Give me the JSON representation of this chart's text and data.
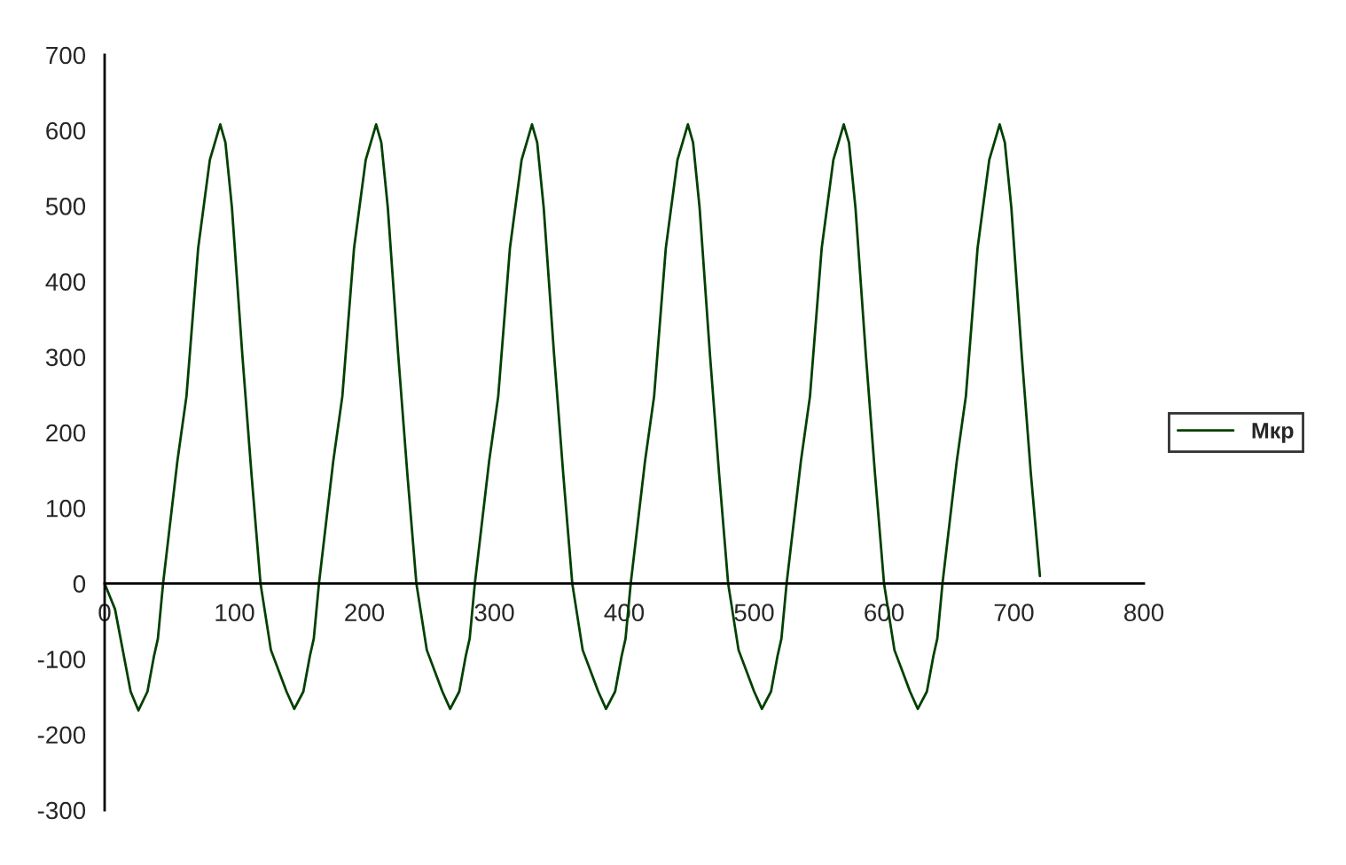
{
  "chart_data": {
    "type": "line",
    "xlim": [
      0,
      800
    ],
    "ylim": [
      -300,
      700
    ],
    "xticks": [
      0,
      100,
      200,
      300,
      400,
      500,
      600,
      700,
      800
    ],
    "yticks": [
      -300,
      -200,
      -100,
      0,
      100,
      200,
      300,
      400,
      500,
      600,
      700
    ],
    "grid": false,
    "legend": "right",
    "marker": "none",
    "line_style": "solid",
    "series": [
      {
        "name": "Мкр",
        "color": "#004000",
        "x": [
          0,
          8,
          20,
          26,
          33,
          38,
          41,
          45,
          56,
          63,
          72,
          81,
          89,
          93,
          98,
          106,
          113,
          120,
          128,
          140,
          146,
          153,
          158,
          161,
          165,
          176,
          183,
          192,
          201,
          209,
          213,
          218,
          226,
          233,
          240,
          248,
          260,
          266,
          273,
          278,
          281,
          285,
          296,
          303,
          312,
          321,
          329,
          333,
          338,
          346,
          353,
          360,
          368,
          380,
          386,
          393,
          398,
          401,
          405,
          416,
          423,
          432,
          441,
          449,
          453,
          458,
          466,
          473,
          480,
          488,
          500,
          506,
          513,
          518,
          521,
          525,
          536,
          543,
          552,
          561,
          569,
          573,
          578,
          586,
          593,
          600,
          608,
          620,
          626,
          633,
          638,
          641,
          645,
          656,
          663,
          672,
          681,
          689,
          693,
          698,
          706,
          713,
          720
        ],
        "values": [
          0,
          -34,
          -143,
          -168,
          -143,
          -96,
          -73,
          0,
          162,
          248,
          444,
          561,
          608,
          584,
          498,
          303,
          146,
          0,
          -88,
          -143,
          -166,
          -143,
          -96,
          -73,
          0,
          162,
          248,
          444,
          561,
          608,
          584,
          498,
          303,
          146,
          0,
          -88,
          -143,
          -166,
          -143,
          -96,
          -73,
          0,
          162,
          248,
          444,
          561,
          608,
          584,
          498,
          303,
          146,
          0,
          -88,
          -143,
          -166,
          -143,
          -96,
          -73,
          0,
          162,
          248,
          444,
          561,
          608,
          584,
          498,
          303,
          146,
          0,
          -88,
          -143,
          -166,
          -143,
          -96,
          -73,
          0,
          162,
          248,
          444,
          561,
          608,
          584,
          498,
          303,
          146,
          0,
          -88,
          -143,
          -166,
          -143,
          -96,
          -73,
          0,
          162,
          248,
          444,
          561,
          608,
          584,
          498,
          303,
          146,
          10
        ]
      }
    ]
  }
}
